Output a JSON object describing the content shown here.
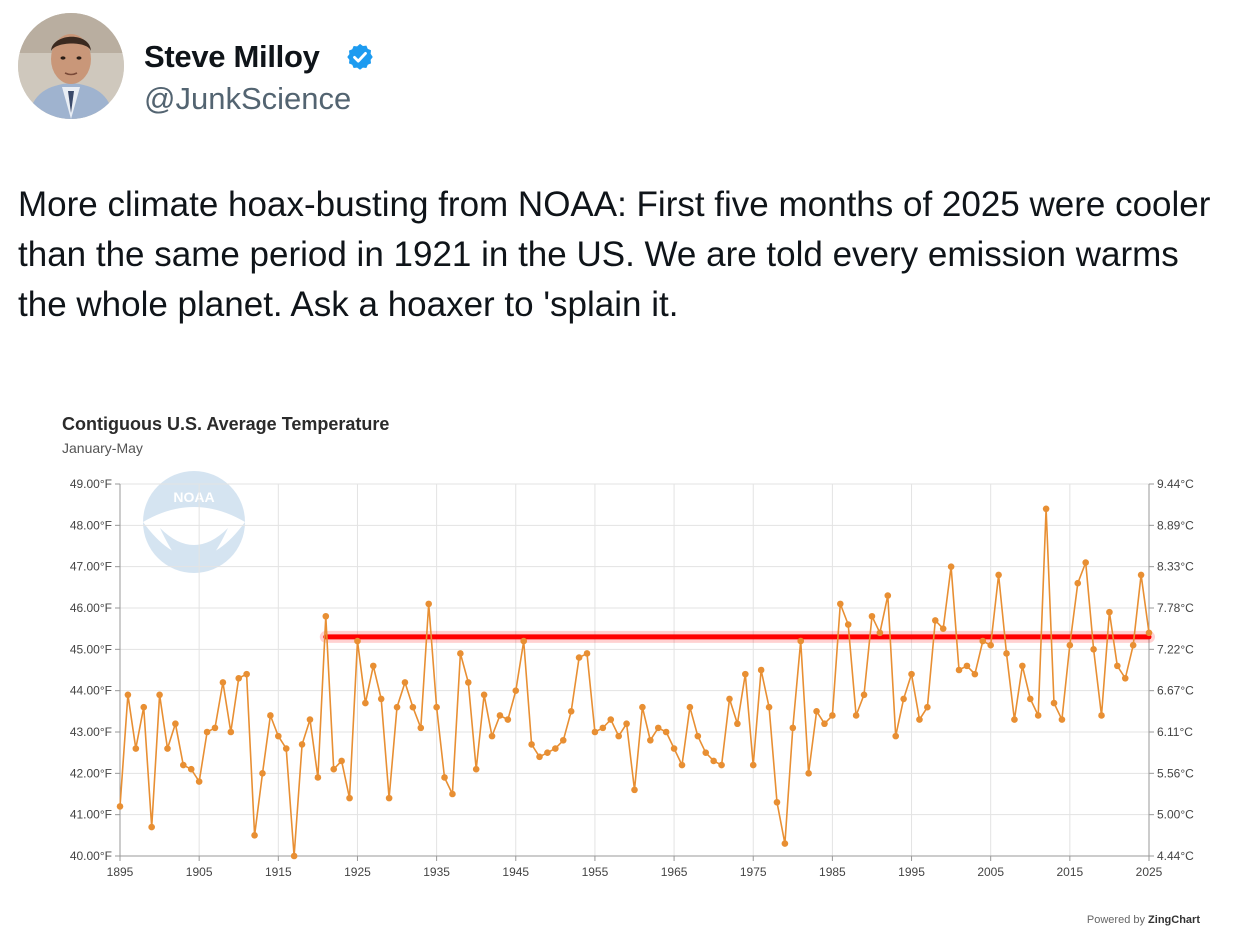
{
  "tweet": {
    "author_name": "Steve Milloy",
    "author_handle": "@JunkScience",
    "verified_icon": "verified-badge-icon",
    "text": "More climate hoax-busting from NOAA: First five months of 2025 were cooler than the same period in 1921 in the US. We are told every emission warms the whole planet. Ask a hoaxer to 'splain it."
  },
  "chart": {
    "powered_by_prefix": "Powered by",
    "powered_by_brand": "ZingChart",
    "watermark": "NOAA"
  },
  "chart_data": {
    "type": "line",
    "title": "Contiguous U.S. Average Temperature",
    "subtitle": "January-May",
    "line_color": "#e88f33",
    "marker_color": "#e88f33",
    "reference_line_color": "#ff0000",
    "reference_line_y": 45.3,
    "grid": true,
    "xlim": [
      1895,
      2025
    ],
    "ylim": [
      40,
      49
    ],
    "x_ticks": [
      "1895",
      "1905",
      "1915",
      "1925",
      "1935",
      "1945",
      "1955",
      "1965",
      "1975",
      "1985",
      "1995",
      "2005",
      "2015",
      "2025"
    ],
    "y_ticks_left": [
      "40.00°F",
      "41.00°F",
      "42.00°F",
      "43.00°F",
      "44.00°F",
      "45.00°F",
      "46.00°F",
      "47.00°F",
      "48.00°F",
      "49.00°F"
    ],
    "y_ticks_right": [
      "4.44°C",
      "5.00°C",
      "5.56°C",
      "6.11°C",
      "6.67°C",
      "7.22°C",
      "7.78°C",
      "8.33°C",
      "8.89°C",
      "9.44°C"
    ],
    "x": [
      1895,
      1896,
      1897,
      1898,
      1899,
      1900,
      1901,
      1902,
      1903,
      1904,
      1905,
      1906,
      1907,
      1908,
      1909,
      1910,
      1911,
      1912,
      1913,
      1914,
      1915,
      1916,
      1917,
      1918,
      1919,
      1920,
      1921,
      1922,
      1923,
      1924,
      1925,
      1926,
      1927,
      1928,
      1929,
      1930,
      1931,
      1932,
      1933,
      1934,
      1935,
      1936,
      1937,
      1938,
      1939,
      1940,
      1941,
      1942,
      1943,
      1944,
      1945,
      1946,
      1947,
      1948,
      1949,
      1950,
      1951,
      1952,
      1953,
      1954,
      1955,
      1956,
      1957,
      1958,
      1959,
      1960,
      1961,
      1962,
      1963,
      1964,
      1965,
      1966,
      1967,
      1968,
      1969,
      1970,
      1971,
      1972,
      1973,
      1974,
      1975,
      1976,
      1977,
      1978,
      1979,
      1980,
      1981,
      1982,
      1983,
      1984,
      1985,
      1986,
      1987,
      1988,
      1989,
      1990,
      1991,
      1992,
      1993,
      1994,
      1995,
      1996,
      1997,
      1998,
      1999,
      2000,
      2001,
      2002,
      2003,
      2004,
      2005,
      2006,
      2007,
      2008,
      2009,
      2010,
      2011,
      2012,
      2013,
      2014,
      2015,
      2016,
      2017,
      2018,
      2019,
      2020,
      2021,
      2022,
      2023,
      2024,
      2025
    ],
    "values": [
      41.2,
      43.9,
      42.6,
      43.6,
      40.7,
      43.9,
      42.6,
      43.2,
      42.2,
      42.1,
      41.8,
      43.0,
      43.1,
      44.2,
      43.0,
      44.3,
      44.4,
      40.5,
      42.0,
      43.4,
      42.9,
      42.6,
      40.0,
      42.7,
      43.3,
      41.9,
      45.8,
      42.1,
      42.3,
      41.4,
      45.2,
      43.7,
      44.6,
      43.8,
      41.4,
      43.6,
      44.2,
      43.6,
      43.1,
      46.1,
      43.6,
      41.9,
      41.5,
      44.9,
      44.2,
      42.1,
      43.9,
      42.9,
      43.4,
      43.3,
      44.0,
      45.2,
      42.7,
      42.4,
      42.5,
      42.6,
      42.8,
      43.5,
      44.8,
      44.9,
      43.0,
      43.1,
      43.3,
      42.9,
      43.2,
      41.6,
      43.6,
      42.8,
      43.1,
      43.0,
      42.6,
      42.2,
      43.6,
      42.9,
      42.5,
      42.3,
      42.2,
      43.8,
      43.2,
      44.4,
      42.2,
      44.5,
      43.6,
      41.3,
      40.3,
      43.1,
      45.2,
      42.0,
      43.5,
      43.2,
      43.4,
      46.1,
      45.6,
      43.4,
      43.9,
      45.8,
      45.4,
      46.3,
      42.9,
      43.8,
      44.4,
      43.3,
      43.6,
      45.7,
      45.5,
      47.0,
      44.5,
      44.6,
      44.4,
      45.2,
      45.1,
      46.8,
      44.9,
      43.3,
      44.6,
      43.8,
      43.4,
      48.4,
      43.7,
      43.3,
      45.1,
      46.6,
      47.1,
      45.0,
      43.4,
      45.9,
      44.6,
      44.3,
      45.1,
      46.8,
      45.4
    ]
  }
}
